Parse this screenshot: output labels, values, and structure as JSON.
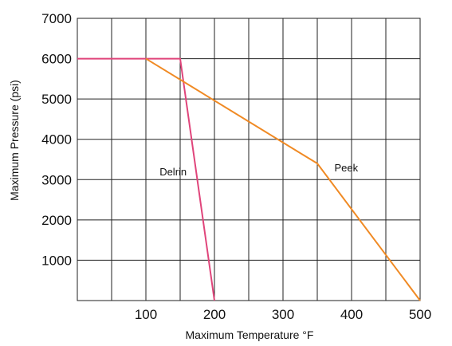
{
  "chart_data": {
    "type": "line",
    "title": "",
    "xlabel": "Maximum Temperature °F",
    "ylabel": "Maximum Pressure (psi)",
    "xlim": [
      0,
      500
    ],
    "ylim": [
      0,
      7000
    ],
    "x_ticks": [
      100,
      200,
      300,
      400,
      500
    ],
    "x_tick_labels": [
      "100",
      "200",
      "300",
      "400",
      "500"
    ],
    "y_ticks": [
      1000,
      2000,
      3000,
      4000,
      5000,
      6000,
      7000
    ],
    "y_tick_labels": [
      "1000",
      "2000",
      "3000",
      "4000",
      "5000",
      "6000",
      "7000"
    ],
    "grid": true,
    "series": [
      {
        "name": "Delrin",
        "color": "#e0457b",
        "points": [
          [
            0,
            6000
          ],
          [
            150,
            6000
          ],
          [
            200,
            0
          ]
        ],
        "label_at": [
          120,
          3100
        ]
      },
      {
        "name": "Peek",
        "color": "#f08a24",
        "points": [
          [
            100,
            6000
          ],
          [
            350,
            3400
          ],
          [
            500,
            0
          ]
        ],
        "label_at": [
          375,
          3200
        ]
      }
    ]
  }
}
